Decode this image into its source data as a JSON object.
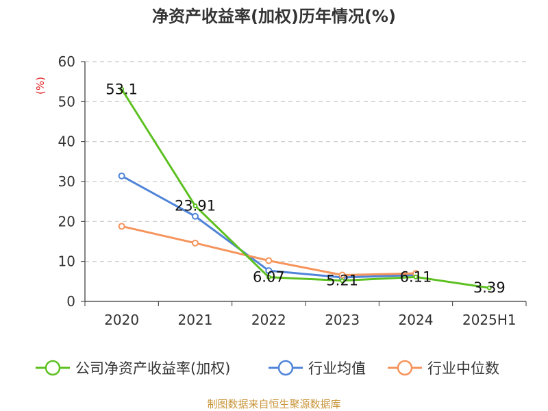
{
  "chart_data": {
    "type": "line",
    "title": "净资产收益率(加权)历年情况(%)",
    "xlabel": "",
    "ylabel": "(%)",
    "categories": [
      "2020",
      "2021",
      "2022",
      "2023",
      "2024",
      "2025H1"
    ],
    "ylim": [
      0,
      60
    ],
    "yticks": [
      0,
      10,
      20,
      30,
      40,
      50,
      60
    ],
    "grid": true,
    "legend_position": "bottom",
    "series": [
      {
        "name": "公司净资产收益率(加权)",
        "color": "#5dc021",
        "values": [
          53.1,
          23.91,
          6.07,
          5.21,
          6.11,
          3.39
        ],
        "data_labels": [
          "53.1",
          "23.91",
          "6.07",
          "5.21",
          "6.11",
          "3.39"
        ],
        "markers": false
      },
      {
        "name": "行业均值",
        "color": "#4f84d9",
        "values": [
          31.4,
          21.3,
          7.7,
          6.0,
          6.6,
          null
        ],
        "data_labels": [],
        "markers": true
      },
      {
        "name": "行业中位数",
        "color": "#f5945c",
        "values": [
          18.8,
          14.6,
          10.2,
          6.6,
          7.0,
          null
        ],
        "data_labels": [],
        "markers": true
      }
    ]
  },
  "footer": {
    "source": "制图数据来自恒生聚源数据库"
  }
}
